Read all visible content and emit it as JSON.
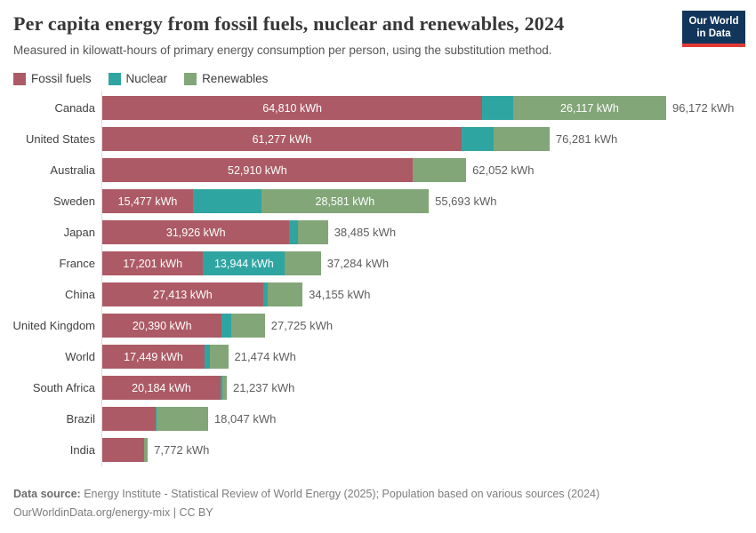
{
  "header": {
    "title": "Per capita energy from fossil fuels, nuclear and renewables, 2024",
    "subtitle": "Measured in kilowatt-hours of primary energy consumption per person, using the substitution method.",
    "logo_line1": "Our World",
    "logo_line2": "in Data"
  },
  "legend": [
    {
      "key": "fossil",
      "label": "Fossil fuels",
      "color": "#ac5a65"
    },
    {
      "key": "nuclear",
      "label": "Nuclear",
      "color": "#2fa5a2"
    },
    {
      "key": "renewables",
      "label": "Renewables",
      "color": "#82a678"
    }
  ],
  "chart_data": {
    "type": "bar",
    "orientation": "horizontal",
    "stacked": true,
    "title": "Per capita energy from fossil fuels, nuclear and renewables, 2024",
    "unit": "kWh",
    "xlim": [
      0,
      96172
    ],
    "grid": false,
    "legend_position": "top-left",
    "series_names": [
      "Fossil fuels",
      "Nuclear",
      "Renewables"
    ],
    "colors": {
      "fossil": "#ac5a65",
      "nuclear": "#2fa5a2",
      "renewables": "#82a678"
    },
    "rows": [
      {
        "country": "Canada",
        "fossil": 64810,
        "nuclear": 5245,
        "renewables": 26117,
        "total": 96172,
        "total_label": "96,172 kWh",
        "segment_labels": {
          "fossil": "64,810 kWh",
          "renewables": "26,117 kWh"
        }
      },
      {
        "country": "United States",
        "fossil": 61277,
        "nuclear": 5500,
        "renewables": 9504,
        "total": 76281,
        "total_label": "76,281 kWh",
        "segment_labels": {
          "fossil": "61,277 kWh"
        }
      },
      {
        "country": "Australia",
        "fossil": 52910,
        "nuclear": 0,
        "renewables": 9142,
        "total": 62052,
        "total_label": "62,052 kWh",
        "segment_labels": {
          "fossil": "52,910 kWh"
        }
      },
      {
        "country": "Sweden",
        "fossil": 15477,
        "nuclear": 11635,
        "renewables": 28581,
        "total": 55693,
        "total_label": "55,693 kWh",
        "segment_labels": {
          "fossil": "15,477 kWh",
          "renewables": "28,581 kWh"
        }
      },
      {
        "country": "Japan",
        "fossil": 31926,
        "nuclear": 1509,
        "renewables": 5050,
        "total": 38485,
        "total_label": "38,485 kWh",
        "segment_labels": {
          "fossil": "31,926 kWh"
        }
      },
      {
        "country": "France",
        "fossil": 17201,
        "nuclear": 13944,
        "renewables": 6139,
        "total": 37284,
        "total_label": "37,284 kWh",
        "segment_labels": {
          "fossil": "17,201 kWh",
          "nuclear": "13,944 kWh"
        }
      },
      {
        "country": "China",
        "fossil": 27413,
        "nuclear": 800,
        "renewables": 5942,
        "total": 34155,
        "total_label": "34,155 kWh",
        "segment_labels": {
          "fossil": "27,413 kWh"
        }
      },
      {
        "country": "United Kingdom",
        "fossil": 20390,
        "nuclear": 1670,
        "renewables": 5665,
        "total": 27725,
        "total_label": "27,725 kWh",
        "segment_labels": {
          "fossil": "20,390 kWh"
        }
      },
      {
        "country": "World",
        "fossil": 17449,
        "nuclear": 900,
        "renewables": 3125,
        "total": 21474,
        "total_label": "21,474 kWh",
        "segment_labels": {
          "fossil": "17,449 kWh"
        }
      },
      {
        "country": "South Africa",
        "fossil": 20184,
        "nuclear": 250,
        "renewables": 803,
        "total": 21237,
        "total_label": "21,237 kWh",
        "segment_labels": {
          "fossil": "20,184 kWh"
        }
      },
      {
        "country": "Brazil",
        "fossil": 9080,
        "nuclear": 150,
        "renewables": 8817,
        "total": 18047,
        "total_label": "18,047 kWh",
        "segment_labels": {}
      },
      {
        "country": "India",
        "fossil": 7100,
        "nuclear": 40,
        "renewables": 632,
        "total": 7772,
        "total_label": "7,772 kWh",
        "segment_labels": {}
      }
    ]
  },
  "footer": {
    "source_bold": "Data source:",
    "source_rest": " Energy Institute - Statistical Review of World Energy (2025); Population based on various sources (2024)",
    "url": "OurWorldinData.org/energy-mix",
    "separator": " | ",
    "license": "CC BY"
  }
}
